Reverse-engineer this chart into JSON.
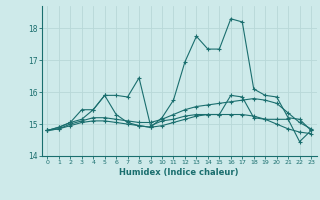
{
  "xlabel": "Humidex (Indice chaleur)",
  "xlim": [
    -0.5,
    23.5
  ],
  "ylim": [
    14.0,
    18.7
  ],
  "yticks": [
    14,
    15,
    16,
    17,
    18
  ],
  "xticks": [
    0,
    1,
    2,
    3,
    4,
    5,
    6,
    7,
    8,
    9,
    10,
    11,
    12,
    13,
    14,
    15,
    16,
    17,
    18,
    19,
    20,
    21,
    22,
    23
  ],
  "bg_color": "#ceeaea",
  "grid_color": "#b8d8d8",
  "line_color": "#1a6e6e",
  "lines": [
    {
      "x": [
        0,
        1,
        2,
        3,
        4,
        5,
        6,
        7,
        8,
        9,
        10,
        11,
        12,
        13,
        14,
        15,
        16,
        17,
        18,
        19,
        20,
        21,
        22,
        23
      ],
      "y": [
        14.8,
        14.9,
        15.05,
        15.15,
        15.45,
        15.9,
        15.3,
        15.05,
        14.95,
        14.9,
        15.2,
        15.75,
        16.95,
        17.75,
        17.35,
        17.35,
        18.3,
        18.2,
        16.1,
        15.9,
        15.85,
        15.2,
        15.15,
        14.8
      ]
    },
    {
      "x": [
        0,
        1,
        2,
        3,
        4,
        5,
        6,
        7,
        8,
        9,
        10,
        11,
        12,
        13,
        14,
        15,
        16,
        17,
        18,
        19,
        20,
        21,
        22,
        23
      ],
      "y": [
        14.8,
        14.85,
        15.0,
        15.1,
        15.2,
        15.2,
        15.15,
        15.1,
        15.05,
        15.05,
        15.15,
        15.3,
        15.45,
        15.55,
        15.6,
        15.65,
        15.7,
        15.75,
        15.8,
        15.75,
        15.65,
        15.35,
        15.05,
        14.85
      ]
    },
    {
      "x": [
        0,
        1,
        2,
        3,
        4,
        5,
        6,
        7,
        8,
        9,
        10,
        11,
        12,
        13,
        14,
        15,
        16,
        17,
        18,
        19,
        20,
        21,
        22,
        23
      ],
      "y": [
        14.8,
        14.85,
        14.95,
        15.05,
        15.1,
        15.1,
        15.05,
        15.0,
        14.95,
        14.9,
        14.95,
        15.05,
        15.15,
        15.25,
        15.3,
        15.3,
        15.3,
        15.3,
        15.25,
        15.15,
        15.0,
        14.85,
        14.75,
        14.7
      ]
    },
    {
      "x": [
        0,
        1,
        2,
        3,
        4,
        5,
        6,
        7,
        8,
        9,
        10,
        11,
        12,
        13,
        14,
        15,
        16,
        17,
        18,
        19,
        20,
        21,
        22,
        23
      ],
      "y": [
        14.8,
        14.9,
        15.05,
        15.45,
        15.45,
        15.9,
        15.9,
        15.85,
        16.45,
        14.95,
        15.1,
        15.15,
        15.25,
        15.3,
        15.3,
        15.3,
        15.9,
        15.85,
        15.2,
        15.15,
        15.15,
        15.15,
        14.45,
        14.8
      ]
    }
  ]
}
